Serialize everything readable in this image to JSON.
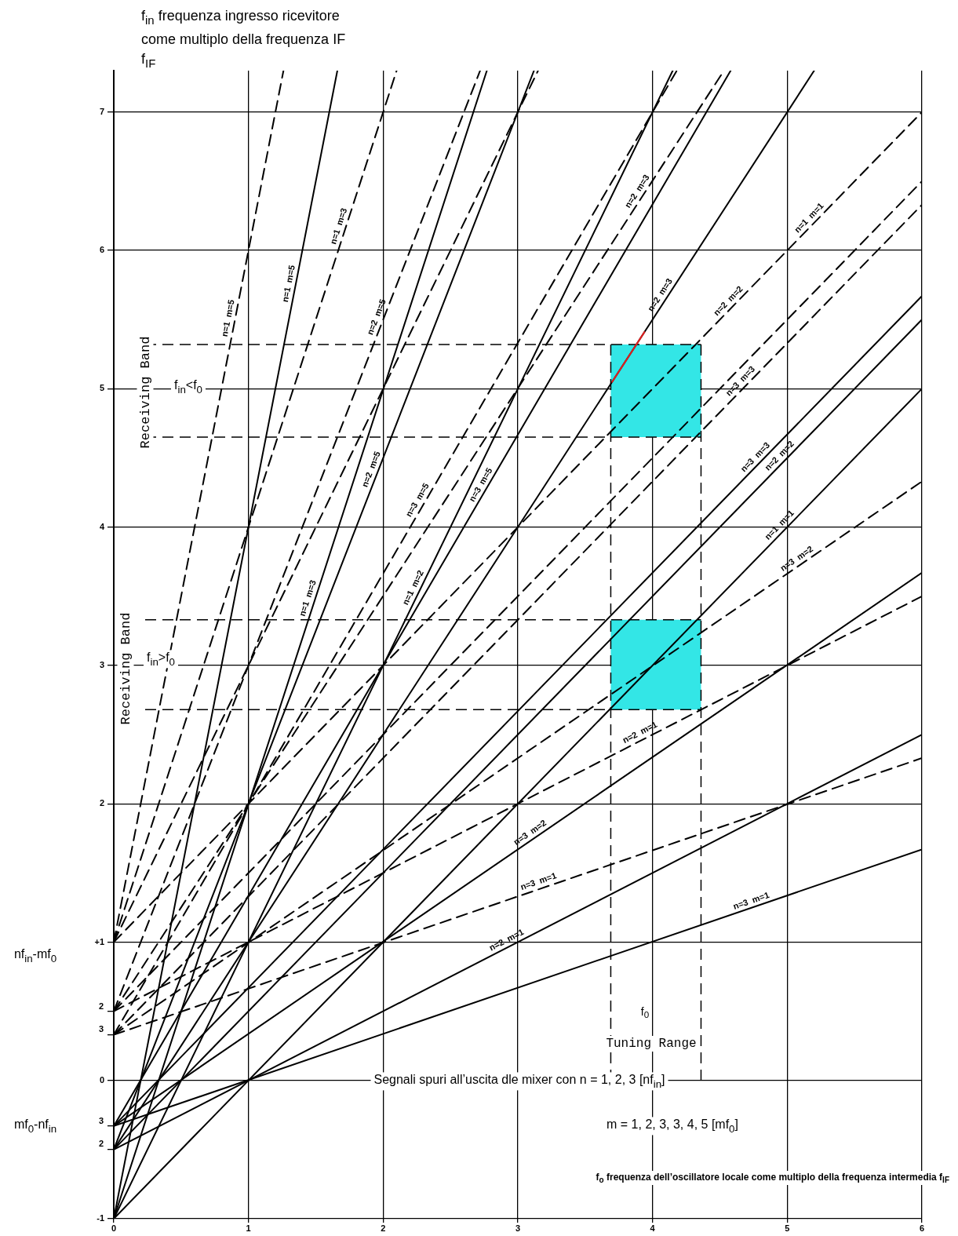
{
  "chart_data": {
    "type": "line",
    "ylabel": "f$_{in}$ frequenza ingresso ricevitore come multiplo della frequenza IF f$_{IF}$",
    "xlabel": "f$_{o}$ frequenza dell’oscillatore locale come multiplo della frequenza intermedia f$_{IF}$",
    "xlim": [
      0,
      6
    ],
    "xticks": [
      0,
      1,
      2,
      3,
      4,
      5,
      6
    ],
    "ylim": [
      -1,
      7.3
    ],
    "yticks": [
      {
        "value": -1,
        "label": "-1"
      },
      {
        "value": -0.5,
        "label": null
      },
      {
        "value": -0.33,
        "label": null
      },
      0,
      {
        "value": 0.33,
        "label": null
      },
      {
        "value": 0.5,
        "label": null
      },
      {
        "value": 1,
        "label": "+1"
      },
      2,
      3,
      4,
      5,
      6,
      7
    ],
    "grid": true,
    "legend": false,
    "marker": "none",
    "series": [
      {
        "color": "#000000",
        "line_style": "solid",
        "x": [
          0,
          6
        ],
        "values": [
          -1,
          5
        ]
      },
      {
        "color": "#000000",
        "line_style": "dashed",
        "x": [
          0,
          6
        ],
        "values": [
          1,
          7
        ]
      },
      {
        "color": "#000000",
        "line_style": "solid",
        "x": [
          0,
          4.15
        ],
        "values": [
          -1,
          7.3
        ]
      },
      {
        "color": "#000000",
        "line_style": "dashed",
        "x": [
          0,
          3.15
        ],
        "values": [
          1,
          7.3
        ]
      },
      {
        "color": "#000000",
        "line_style": "solid",
        "x": [
          0,
          2.77
        ],
        "values": [
          -1,
          7.3
        ]
      },
      {
        "color": "#000000",
        "line_style": "dashed",
        "x": [
          0,
          2.1
        ],
        "values": [
          1,
          7.3
        ]
      },
      {
        "color": "#000000",
        "line_style": "solid",
        "x": [
          0,
          1.66
        ],
        "values": [
          -1,
          7.3
        ]
      },
      {
        "color": "#000000",
        "line_style": "dashed",
        "x": [
          0,
          1.26
        ],
        "values": [
          1,
          7.3
        ]
      },
      {
        "color": "#000000",
        "line_style": "solid",
        "x": [
          0,
          6
        ],
        "values": [
          -0.5,
          2.5
        ]
      },
      {
        "color": "#000000",
        "line_style": "dashed",
        "x": [
          0,
          6
        ],
        "values": [
          0.5,
          3.5
        ]
      },
      {
        "color": "#000000",
        "line_style": "solid",
        "x": [
          0,
          6
        ],
        "values": [
          -0.5,
          5.5
        ]
      },
      {
        "color": "#000000",
        "line_style": "dashed",
        "x": [
          0,
          6
        ],
        "values": [
          0.5,
          6.5
        ]
      },
      {
        "color": "#000000",
        "line_style": "solid",
        "x": [
          0,
          5.2
        ],
        "values": [
          -0.5,
          7.3
        ]
      },
      {
        "color": "#000000",
        "line_style": "dashed",
        "x": [
          0,
          4.53
        ],
        "values": [
          0.5,
          7.3
        ]
      },
      {
        "color": "#000000",
        "line_style": "solid",
        "x": [
          0,
          3.12
        ],
        "values": [
          -0.5,
          7.3
        ]
      },
      {
        "color": "#000000",
        "line_style": "dashed",
        "x": [
          0,
          2.72
        ],
        "values": [
          0.5,
          7.3
        ]
      },
      {
        "color": "#000000",
        "line_style": "solid",
        "x": [
          0,
          6
        ],
        "values": [
          -0.33,
          1.67
        ]
      },
      {
        "color": "#000000",
        "line_style": "dashed",
        "x": [
          0,
          6
        ],
        "values": [
          0.33,
          2.33
        ]
      },
      {
        "color": "#000000",
        "line_style": "solid",
        "x": [
          0,
          6
        ],
        "values": [
          -0.33,
          3.67
        ]
      },
      {
        "color": "#000000",
        "line_style": "dashed",
        "x": [
          0,
          6
        ],
        "values": [
          0.33,
          4.33
        ]
      },
      {
        "color": "#000000",
        "line_style": "solid",
        "x": [
          0,
          6
        ],
        "values": [
          -0.33,
          5.67
        ]
      },
      {
        "color": "#000000",
        "line_style": "dashed",
        "x": [
          0,
          6
        ],
        "values": [
          0.33,
          6.33
        ]
      },
      {
        "color": "#000000",
        "line_style": "solid",
        "x": [
          0,
          4.58
        ],
        "values": [
          -0.33,
          7.3
        ]
      },
      {
        "color": "#000000",
        "line_style": "dashed",
        "x": [
          0,
          4.18
        ],
        "values": [
          0.33,
          7.3
        ]
      },
      {
        "color": "#e02020",
        "line_style": "solid",
        "x": [
          3.7,
          3.94
        ],
        "values": [
          5.05,
          5.41
        ]
      }
    ],
    "ref_lines": [
      {
        "axis": "x",
        "value": 3.69,
        "line_style": "dashed"
      },
      {
        "axis": "x",
        "value": 4.36,
        "line_style": "dashed"
      },
      {
        "axis": "y",
        "value": 5.32,
        "line_style": "dashed"
      },
      {
        "axis": "y",
        "value": 4.65,
        "line_style": "dashed"
      },
      {
        "axis": "y",
        "value": 3.33,
        "line_style": "dashed"
      },
      {
        "axis": "y",
        "value": 2.68,
        "line_style": "dashed"
      }
    ],
    "bands": [
      {
        "axis": "y",
        "from": 4.65,
        "to": 5.32,
        "color": "#33e6e6"
      },
      {
        "axis": "y",
        "from": 2.68,
        "to": 3.33,
        "color": "#33e6e6"
      }
    ],
    "annotations": [
      "Receiving Band",
      "Receiving Band",
      "f$_{in}$<f$_{0}$",
      "f$_{in}$>f$_{0}$",
      "f$_{0}$",
      "Tuning Range",
      "nf$_{in}$-mf$_{0}$",
      "mf$_{0}$-nf$_{in}$",
      "Segnali spuri all’uscita dle mixer con n = 1, 2, 3  [nf$_{in}$]",
      "m = 1, 2, 3, 3, 4, 5 [mf$_{0}$]",
      "2",
      "3",
      "3",
      "2",
      {
        "text": "n=1  m=5",
        "x": 0.9,
        "y": 5.5
      },
      {
        "text": "n=1  m=5",
        "x": 1.35,
        "y": 5.75
      },
      {
        "text": "n=1  m=3",
        "x": 1.72,
        "y": 6.16
      },
      {
        "text": "n=1  m=3",
        "x": 1.49,
        "y": 3.47
      },
      {
        "text": "n=2  m=5",
        "x": 2.0,
        "y": 5.5
      },
      {
        "text": "n=2  m=5",
        "x": 1.96,
        "y": 4.4
      },
      {
        "text": "n=3  m=5",
        "x": 2.3,
        "y": 4.17
      },
      {
        "text": "n=3  m=5",
        "x": 2.77,
        "y": 4.28
      },
      {
        "text": "n=1  m=2",
        "x": 2.27,
        "y": 3.54
      },
      {
        "text": "n=2  m=3",
        "x": 3.93,
        "y": 6.4
      },
      {
        "text": "n=2  m=3",
        "x": 4.1,
        "y": 5.65
      },
      {
        "text": "n=1  m=1",
        "x": 5.2,
        "y": 6.2
      },
      {
        "text": "n=2  m=2",
        "x": 4.6,
        "y": 5.6
      },
      {
        "text": "n=3  m=3",
        "x": 4.69,
        "y": 5.02
      },
      {
        "text": "n=3  m=3",
        "x": 4.8,
        "y": 4.47
      },
      {
        "text": "n=2  m=2",
        "x": 4.98,
        "y": 4.48
      },
      {
        "text": "n=1  m=1",
        "x": 4.98,
        "y": 3.98
      },
      {
        "text": "n=3  m=2",
        "x": 5.1,
        "y": 3.73
      },
      {
        "text": "n=2  m=1",
        "x": 3.93,
        "y": 2.47
      },
      {
        "text": "n=3  m=2",
        "x": 3.12,
        "y": 1.75
      },
      {
        "text": "n=3  m=1",
        "x": 3.17,
        "y": 1.39
      },
      {
        "text": "n=2  m=1",
        "x": 2.94,
        "y": 0.97
      },
      {
        "text": "n=3  m=1",
        "x": 4.75,
        "y": 1.25
      }
    ]
  }
}
